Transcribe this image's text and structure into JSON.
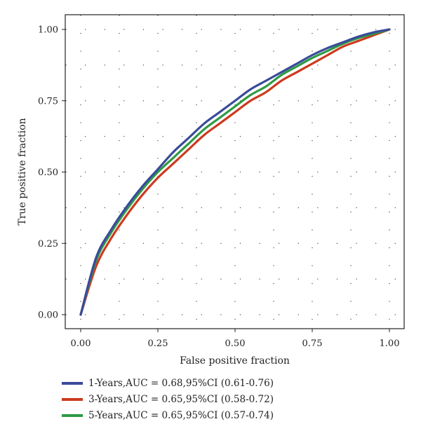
{
  "chart_data": {
    "type": "line",
    "xlabel": "False positive fraction",
    "ylabel": "True positive fraction",
    "xlim": [
      0,
      1
    ],
    "ylim": [
      0,
      1
    ],
    "x_ticks": [
      "0.00",
      "0.25",
      "0.50",
      "0.75",
      "1.00"
    ],
    "y_ticks": [
      "0.00",
      "0.25",
      "0.50",
      "0.75",
      "1.00"
    ],
    "grid": "dotted",
    "legend_position": "bottom-left",
    "series": [
      {
        "name": "1-Years,AUC = 0.68,95%CI (0.61-0.76)",
        "color": "#3a4b9a",
        "x": [
          0.0,
          0.05,
          0.1,
          0.15,
          0.2,
          0.25,
          0.3,
          0.35,
          0.4,
          0.45,
          0.5,
          0.55,
          0.6,
          0.65,
          0.7,
          0.75,
          0.8,
          0.85,
          0.9,
          0.95,
          1.0
        ],
        "y": [
          0.0,
          0.2,
          0.3,
          0.38,
          0.45,
          0.51,
          0.57,
          0.62,
          0.67,
          0.71,
          0.75,
          0.79,
          0.82,
          0.85,
          0.88,
          0.91,
          0.935,
          0.955,
          0.975,
          0.99,
          1.0
        ]
      },
      {
        "name": "3-Years,AUC = 0.65,95%CI (0.58-0.72)",
        "color": "#cc3a1e",
        "x": [
          0.0,
          0.05,
          0.1,
          0.15,
          0.2,
          0.25,
          0.3,
          0.35,
          0.4,
          0.45,
          0.5,
          0.55,
          0.6,
          0.65,
          0.7,
          0.75,
          0.8,
          0.85,
          0.9,
          0.95,
          1.0
        ],
        "y": [
          0.0,
          0.17,
          0.27,
          0.35,
          0.42,
          0.48,
          0.53,
          0.58,
          0.63,
          0.67,
          0.71,
          0.75,
          0.78,
          0.82,
          0.85,
          0.88,
          0.91,
          0.94,
          0.96,
          0.98,
          1.0
        ]
      },
      {
        "name": "5-Years,AUC = 0.65,95%CI (0.57-0.74)",
        "color": "#2e9a44",
        "x": [
          0.0,
          0.05,
          0.1,
          0.15,
          0.2,
          0.25,
          0.3,
          0.35,
          0.4,
          0.45,
          0.5,
          0.55,
          0.6,
          0.65,
          0.7,
          0.75,
          0.8,
          0.85,
          0.9,
          0.95,
          1.0
        ],
        "y": [
          0.0,
          0.19,
          0.29,
          0.37,
          0.44,
          0.5,
          0.55,
          0.6,
          0.65,
          0.69,
          0.73,
          0.77,
          0.8,
          0.84,
          0.87,
          0.9,
          0.925,
          0.95,
          0.97,
          0.985,
          1.0
        ]
      }
    ]
  }
}
